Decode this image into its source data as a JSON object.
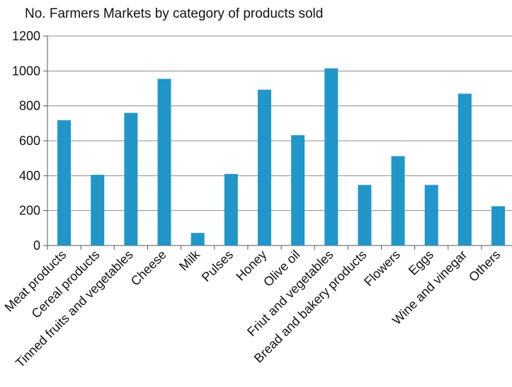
{
  "chart_data": {
    "type": "bar",
    "title": "No. Farmers Markets by category of products sold",
    "xlabel": "",
    "ylabel": "",
    "ylim": [
      0,
      1200
    ],
    "yticks": [
      0,
      200,
      400,
      600,
      800,
      1000,
      1200
    ],
    "grid": true,
    "legend": "none",
    "bar_color": "#2196c9",
    "grid_color": "#8c8c8c",
    "categories": [
      "Meat products",
      "Cereal products",
      "Tinned fruits and vegetables",
      "Cheese",
      "Milk",
      "Pulses",
      "Honey",
      "Olive oil",
      "Friut and vegetables",
      "Bread and bakery products",
      "Flowers",
      "Eggs",
      "Wine and vinegar",
      "Others"
    ],
    "values": [
      718,
      405,
      760,
      955,
      72,
      410,
      893,
      632,
      1015,
      347,
      512,
      347,
      870,
      225
    ]
  }
}
